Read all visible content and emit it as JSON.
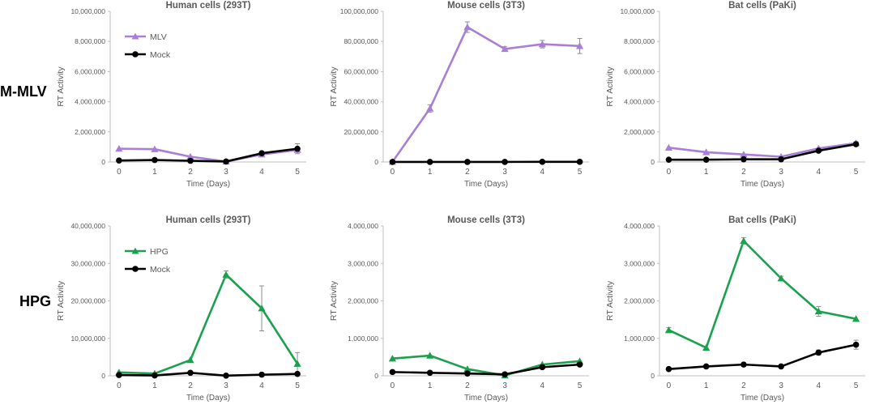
{
  "figure": {
    "row_labels": [
      "M-MLV",
      "HPG"
    ]
  },
  "colors": {
    "mlv": "#a87ed6",
    "hpg": "#1aa14d",
    "mock": "#000000",
    "axis": "#bfbfbf",
    "text": "#595959",
    "error": "#8c8c8c"
  },
  "chart_data": [
    {
      "type": "line",
      "row": 0,
      "col": 0,
      "title": "Human cells (293T)",
      "xlabel": "Time (Days)",
      "ylabel": "RT Activity",
      "x": [
        0,
        1,
        2,
        3,
        4,
        5
      ],
      "ylim": [
        0,
        10000000
      ],
      "yticks": [
        "0",
        "2,000,000",
        "4,000,000",
        "6,000,000",
        "8,000,000",
        "10,000,000"
      ],
      "legend": "top-left",
      "series": [
        {
          "name": "MLV",
          "key": "mlv",
          "marker": "triangle",
          "values": [
            880000,
            850000,
            350000,
            30000,
            500000,
            800000
          ],
          "errors": [
            0,
            0,
            0,
            0,
            0,
            150000
          ]
        },
        {
          "name": "Mock",
          "key": "mock",
          "marker": "circle",
          "values": [
            100000,
            130000,
            80000,
            30000,
            580000,
            880000
          ],
          "errors": [
            0,
            0,
            0,
            0,
            60000,
            330000
          ]
        }
      ]
    },
    {
      "type": "line",
      "row": 0,
      "col": 1,
      "title": "Mouse cells (3T3)",
      "xlabel": "Time (Days)",
      "ylabel": "RT Activity",
      "x": [
        0,
        1,
        2,
        3,
        4,
        5
      ],
      "ylim": [
        0,
        100000000
      ],
      "yticks": [
        "0",
        "20,000,000",
        "40,000,000",
        "60,000,000",
        "80,000,000",
        "100,000,000"
      ],
      "legend": "none",
      "series": [
        {
          "name": "MLV",
          "key": "mlv",
          "marker": "triangle",
          "values": [
            100000,
            35500000,
            89500000,
            75000000,
            78200000,
            77000000
          ],
          "errors": [
            0,
            2500000,
            3500000,
            1500000,
            2500000,
            5000000
          ]
        },
        {
          "name": "Mock",
          "key": "mock",
          "marker": "circle",
          "values": [
            50000,
            50000,
            50000,
            50000,
            100000,
            100000
          ],
          "errors": [
            0,
            0,
            0,
            0,
            0,
            0
          ]
        }
      ]
    },
    {
      "type": "line",
      "row": 0,
      "col": 2,
      "title": "Bat cells (PaKi)",
      "xlabel": "Time (Days)",
      "ylabel": "RT Activity",
      "x": [
        0,
        1,
        2,
        3,
        4,
        5
      ],
      "ylim": [
        0,
        10000000
      ],
      "yticks": [
        "0",
        "2,000,000",
        "4,000,000",
        "6,000,000",
        "8,000,000",
        "10,000,000"
      ],
      "legend": "none",
      "series": [
        {
          "name": "MLV",
          "key": "mlv",
          "marker": "triangle",
          "values": [
            950000,
            650000,
            500000,
            350000,
            900000,
            1250000
          ],
          "errors": [
            0,
            0,
            0,
            0,
            0,
            100000
          ]
        },
        {
          "name": "Mock",
          "key": "mock",
          "marker": "circle",
          "values": [
            150000,
            150000,
            180000,
            180000,
            750000,
            1180000
          ],
          "errors": [
            0,
            0,
            0,
            0,
            0,
            100000
          ]
        }
      ]
    },
    {
      "type": "line",
      "row": 1,
      "col": 0,
      "title": "Human cells (293T)",
      "xlabel": "Time (Days)",
      "ylabel": "RT Activity",
      "x": [
        0,
        1,
        2,
        3,
        4,
        5
      ],
      "ylim": [
        0,
        40000000
      ],
      "yticks": [
        "0",
        "10,000,000",
        "20,000,000",
        "30,000,000",
        "40,000,000"
      ],
      "legend": "top-left",
      "series": [
        {
          "name": "HPG",
          "key": "hpg",
          "marker": "triangle",
          "values": [
            900000,
            600000,
            4200000,
            27000000,
            18000000,
            3200000
          ],
          "errors": [
            0,
            0,
            0,
            1000000,
            6000000,
            3000000
          ]
        },
        {
          "name": "Mock",
          "key": "mock",
          "marker": "circle",
          "values": [
            200000,
            100000,
            800000,
            50000,
            300000,
            500000
          ],
          "errors": [
            0,
            0,
            0,
            0,
            0,
            0
          ]
        }
      ]
    },
    {
      "type": "line",
      "row": 1,
      "col": 1,
      "title": "Mouse cells (3T3)",
      "xlabel": "Time (Days)",
      "ylabel": "RT Activity",
      "x": [
        0,
        1,
        2,
        3,
        4,
        5
      ],
      "ylim": [
        0,
        4000000
      ],
      "yticks": [
        "0",
        "1,000,000",
        "2,000,000",
        "3,000,000",
        "4,000,000"
      ],
      "legend": "none",
      "series": [
        {
          "name": "HPG",
          "key": "hpg",
          "marker": "triangle",
          "values": [
            460000,
            540000,
            180000,
            10000,
            300000,
            390000
          ],
          "errors": [
            0,
            0,
            0,
            0,
            0,
            0
          ]
        },
        {
          "name": "Mock",
          "key": "mock",
          "marker": "circle",
          "values": [
            100000,
            80000,
            60000,
            40000,
            230000,
            300000
          ],
          "errors": [
            0,
            0,
            0,
            0,
            0,
            0
          ]
        }
      ]
    },
    {
      "type": "line",
      "row": 1,
      "col": 2,
      "title": "Bat cells (PaKi)",
      "xlabel": "Time (Days)",
      "ylabel": "RT Activity",
      "x": [
        0,
        1,
        2,
        3,
        4,
        5
      ],
      "ylim": [
        0,
        4000000
      ],
      "yticks": [
        "0",
        "1,000,000",
        "2,000,000",
        "3,000,000",
        "4,000,000"
      ],
      "legend": "none",
      "series": [
        {
          "name": "HPG",
          "key": "hpg",
          "marker": "triangle",
          "values": [
            1220000,
            750000,
            3600000,
            2600000,
            1720000,
            1520000
          ],
          "errors": [
            70000,
            0,
            90000,
            60000,
            130000,
            0
          ]
        },
        {
          "name": "Mock",
          "key": "mock",
          "marker": "circle",
          "values": [
            180000,
            250000,
            300000,
            250000,
            620000,
            830000
          ],
          "errors": [
            0,
            0,
            50000,
            0,
            70000,
            120000
          ]
        }
      ]
    }
  ]
}
